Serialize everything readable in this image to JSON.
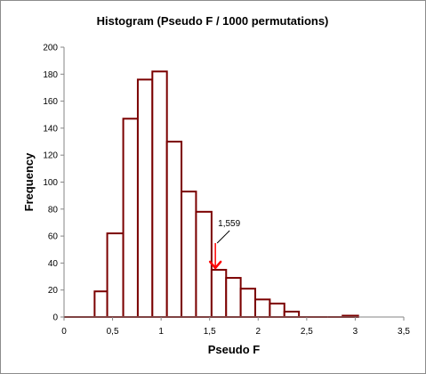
{
  "chart_data": {
    "type": "bar",
    "title": "Histogram (Pseudo F / 1000 permutations)",
    "xlabel": "Pseudo F",
    "ylabel": "Frequency",
    "xlim": [
      0,
      3.5
    ],
    "ylim": [
      0,
      200
    ],
    "x_ticks": [
      "0",
      "0,5",
      "1",
      "1,5",
      "2",
      "2,5",
      "3",
      "3,5"
    ],
    "y_ticks": [
      "0",
      "20",
      "40",
      "60",
      "80",
      "100",
      "120",
      "140",
      "160",
      "180",
      "200"
    ],
    "bins": [
      {
        "x0": 0.0,
        "x1": 0.315,
        "value": 0
      },
      {
        "x0": 0.315,
        "x1": 0.445,
        "value": 19
      },
      {
        "x0": 0.445,
        "x1": 0.61,
        "value": 62
      },
      {
        "x0": 0.61,
        "x1": 0.76,
        "value": 147
      },
      {
        "x0": 0.76,
        "x1": 0.91,
        "value": 176
      },
      {
        "x0": 0.91,
        "x1": 1.06,
        "value": 182
      },
      {
        "x0": 1.06,
        "x1": 1.21,
        "value": 130
      },
      {
        "x0": 1.21,
        "x1": 1.36,
        "value": 93
      },
      {
        "x0": 1.36,
        "x1": 1.52,
        "value": 78
      },
      {
        "x0": 1.52,
        "x1": 1.67,
        "value": 35
      },
      {
        "x0": 1.67,
        "x1": 1.82,
        "value": 29
      },
      {
        "x0": 1.82,
        "x1": 1.97,
        "value": 21
      },
      {
        "x0": 1.97,
        "x1": 2.12,
        "value": 13
      },
      {
        "x0": 2.12,
        "x1": 2.27,
        "value": 10
      },
      {
        "x0": 2.27,
        "x1": 2.42,
        "value": 4
      },
      {
        "x0": 2.42,
        "x1": 2.57,
        "value": 0
      },
      {
        "x0": 2.57,
        "x1": 2.72,
        "value": 0
      },
      {
        "x0": 2.72,
        "x1": 2.87,
        "value": 0
      },
      {
        "x0": 2.87,
        "x1": 3.03,
        "value": 1
      }
    ],
    "annotation": {
      "label": "1,559",
      "x": 1.559,
      "value": 35
    },
    "bar_color": "#7b0000",
    "arrow_color": "#ff0000",
    "grid": false,
    "legend": "none"
  }
}
